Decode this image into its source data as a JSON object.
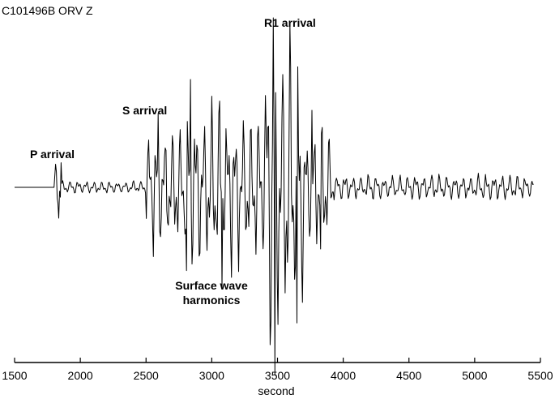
{
  "station_label": "C101496B  ORV  Z",
  "annotations": {
    "p_arrival": "P arrival",
    "s_arrival": "S arrival",
    "r1_arrival": "R1 arrival",
    "surface_wave_line1": "Surface wave",
    "surface_wave_line2": "harmonics"
  },
  "chart_data": {
    "type": "line",
    "title": "C101496B  ORV  Z",
    "xlabel": "second",
    "ylabel": "",
    "xlim": [
      1500,
      5500
    ],
    "x_ticks": [
      1500,
      2000,
      2500,
      3000,
      3500,
      4000,
      4500,
      5000,
      5500
    ],
    "x_tick_labels": [
      "1500",
      "2000",
      "2500",
      "3000",
      "3500",
      "4000",
      "4500",
      "5000",
      "5500"
    ],
    "ylim": [
      -1,
      1
    ],
    "grid": false,
    "trace_color": "#000000",
    "series": [
      {
        "name": "",
        "segments": [
          {
            "x_start": 1500,
            "x_end": 1800,
            "amplitude": 0.0
          },
          {
            "x_start": 1800,
            "x_end": 1850,
            "amplitude": 0.09
          },
          {
            "x_start": 1850,
            "x_end": 2500,
            "amplitude": 0.025
          },
          {
            "x_start": 2500,
            "x_end": 2800,
            "amplitude": 0.25
          },
          {
            "x_start": 2800,
            "x_end": 3050,
            "amplitude": 0.33
          },
          {
            "x_start": 3050,
            "x_end": 3400,
            "amplitude": 0.3
          },
          {
            "x_start": 3400,
            "x_end": 3700,
            "amplitude": 0.58
          },
          {
            "x_start": 3700,
            "x_end": 3920,
            "amplitude": 0.25
          },
          {
            "x_start": 3920,
            "x_end": 5500,
            "amplitude": 0.05
          }
        ],
        "peaks": [
          {
            "x": 1820,
            "y": 0.05
          },
          {
            "x": 1835,
            "y": -0.1
          },
          {
            "x": 1855,
            "y": 0.08
          },
          {
            "x": 2590,
            "y": 0.24
          },
          {
            "x": 2610,
            "y": -0.16
          },
          {
            "x": 2840,
            "y": 0.35
          },
          {
            "x": 2810,
            "y": -0.27
          },
          {
            "x": 3060,
            "y": 0.28
          },
          {
            "x": 3080,
            "y": -0.33
          },
          {
            "x": 3470,
            "y": 0.55
          },
          {
            "x": 3480,
            "y": -0.61
          },
          {
            "x": 3600,
            "y": 0.39
          },
          {
            "x": 3650,
            "y": -0.44
          },
          {
            "x": 3760,
            "y": 0.25
          },
          {
            "x": 3830,
            "y": -0.2
          }
        ]
      }
    ]
  }
}
